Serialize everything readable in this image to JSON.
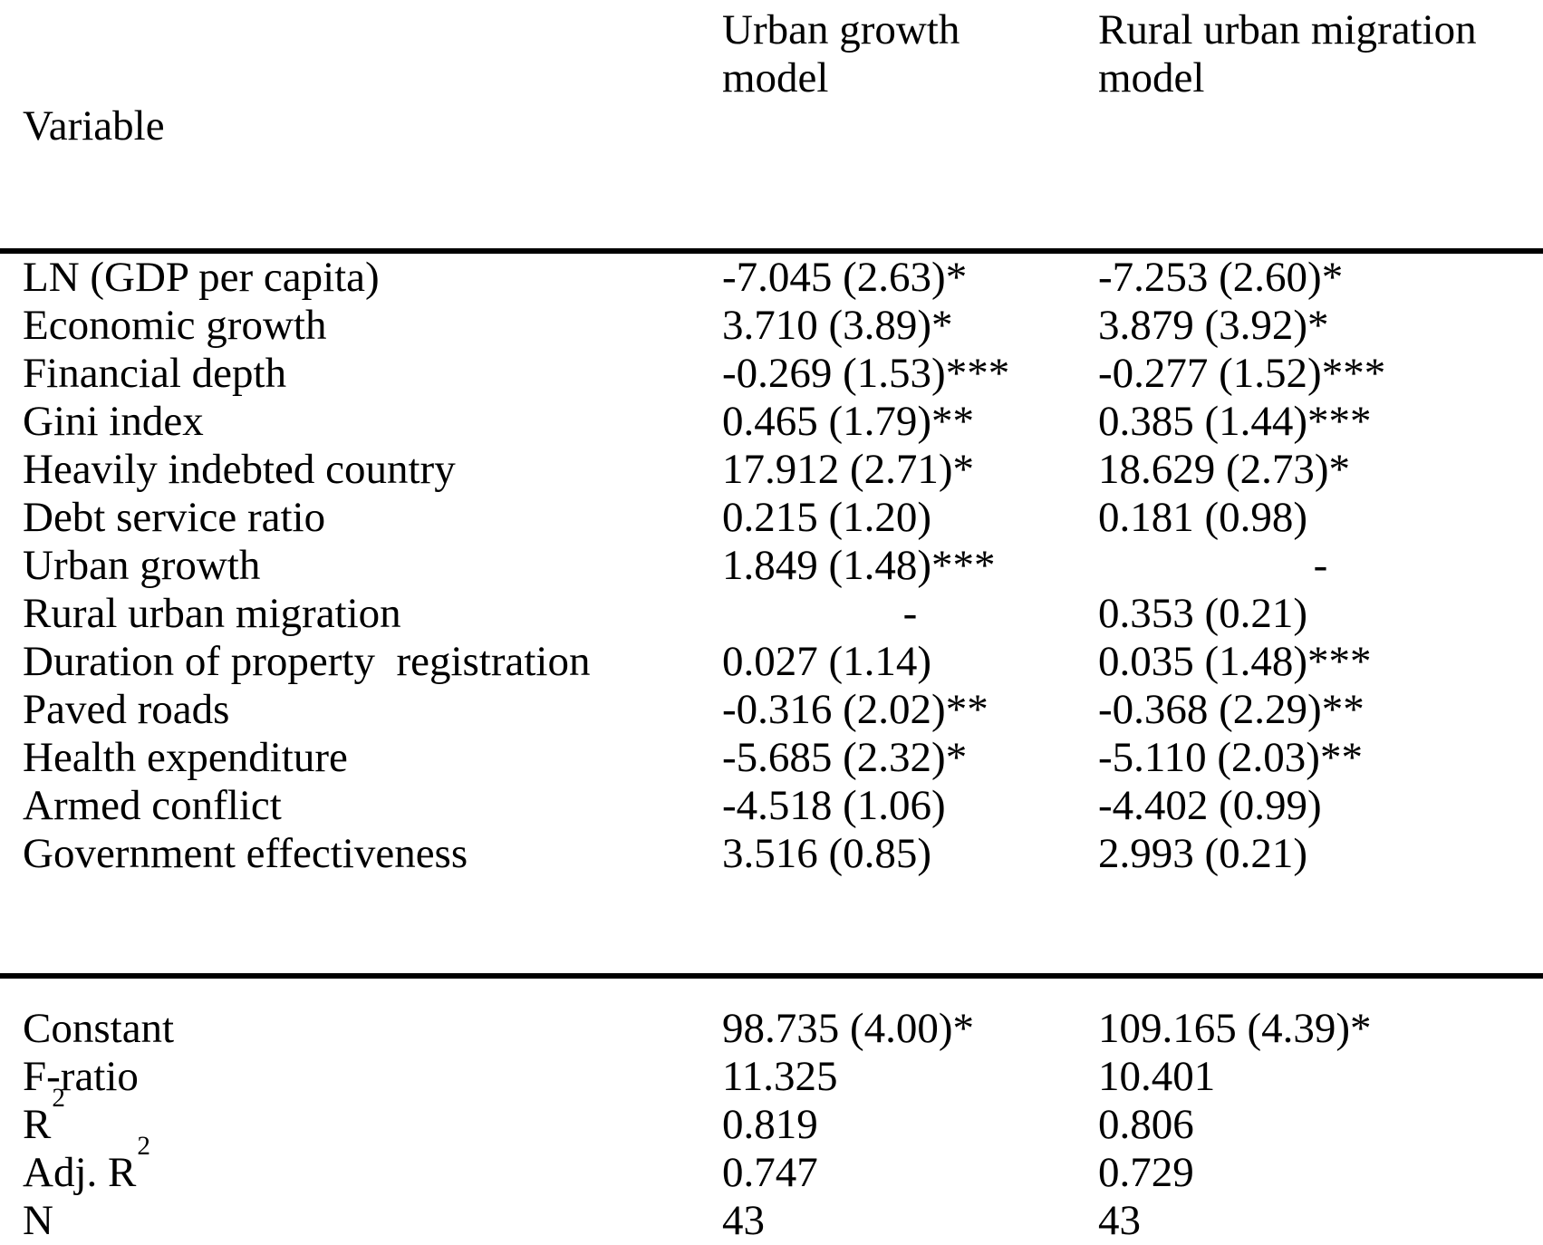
{
  "page": {
    "background_color": "#ffffff",
    "text_color": "#000000",
    "rule_color": "#000000"
  },
  "table": {
    "header": {
      "variable": "Variable",
      "urban_model_line1": "Urban growth",
      "urban_model_line2": "model",
      "rural_model_line1": "Rural urban migration",
      "rural_model_line2": "model"
    },
    "rows": [
      {
        "variable": "LN (GDP per capita)",
        "urban": "-7.045 (2.63)*",
        "rural": "-7.253 (2.60)*"
      },
      {
        "variable": "Economic growth",
        "urban": "3.710 (3.89)*",
        "rural": "3.879 (3.92)*"
      },
      {
        "variable": "Financial depth",
        "urban": "-0.269 (1.53)***",
        "rural": "-0.277 (1.52)***"
      },
      {
        "variable": "Gini index",
        "urban": "0.465 (1.79)**",
        "rural": "0.385 (1.44)***"
      },
      {
        "variable": "Heavily indebted country",
        "urban": "17.912 (2.71)*",
        "rural": "18.629 (2.73)*"
      },
      {
        "variable": "Debt service ratio",
        "urban": "0.215 (1.20)",
        "rural": "0.181 (0.98)"
      },
      {
        "variable": "Urban growth",
        "urban": "1.849 (1.48)***",
        "rural": "-"
      },
      {
        "variable": "Rural urban migration",
        "urban": "-",
        "rural": "0.353 (0.21)"
      },
      {
        "variable": "Duration of property  registration",
        "urban": "0.027 (1.14)",
        "rural": "0.035 (1.48)***"
      },
      {
        "variable": "Paved roads",
        "urban": "-0.316 (2.02)**",
        "rural": "-0.368 (2.29)**"
      },
      {
        "variable": "Health expenditure",
        "urban": "-5.685 (2.32)*",
        "rural": "-5.110 (2.03)**"
      },
      {
        "variable": "Armed conflict",
        "urban": "-4.518 (1.06)",
        "rural": "-4.402 (0.99)"
      },
      {
        "variable": "Government effectiveness",
        "urban": "3.516 (0.85)",
        "rural": "2.993 (0.21)"
      }
    ],
    "summary_rows": [
      {
        "variable": "Constant",
        "urban": "98.735 (4.00)*",
        "rural": "109.165 (4.39)*"
      },
      {
        "variable": "F-ratio",
        "urban": "11.325",
        "rural": "10.401"
      },
      {
        "variable": "R",
        "variable_sup": "2",
        "urban": "0.819",
        "rural": "0.806"
      },
      {
        "variable": "Adj. R",
        "variable_sup": "2",
        "urban": "0.747",
        "rural": "0.729"
      },
      {
        "variable": "N",
        "urban": "43",
        "rural": "43"
      }
    ]
  }
}
